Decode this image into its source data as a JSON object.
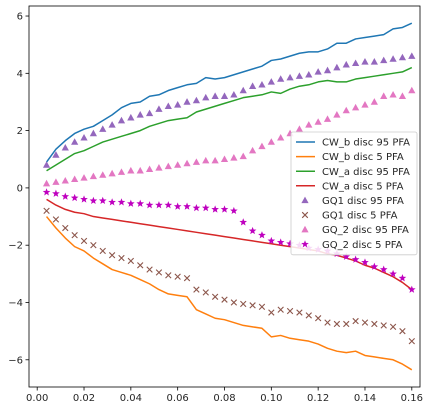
{
  "chart_data": {
    "type": "line",
    "title": "",
    "xlabel": "",
    "ylabel": "",
    "xlim": [
      -0.0035,
      0.1635
    ],
    "ylim": [
      -6.95,
      6.35
    ],
    "xticks": [
      0.0,
      0.02,
      0.04,
      0.06,
      0.08,
      0.1,
      0.12,
      0.14,
      0.16
    ],
    "xtick_labels": [
      "0.00",
      "0.02",
      "0.04",
      "0.06",
      "0.08",
      "0.10",
      "0.12",
      "0.14",
      "0.16"
    ],
    "yticks": [
      -6,
      -4,
      -2,
      0,
      2,
      4,
      6
    ],
    "ytick_labels": [
      "−6",
      "−4",
      "−2",
      "0",
      "2",
      "4",
      "6"
    ],
    "grid": false,
    "legend_position": "center-right",
    "x": [
      0.004,
      0.008,
      0.012,
      0.016,
      0.02,
      0.024,
      0.028,
      0.032,
      0.036,
      0.04,
      0.044,
      0.048,
      0.052,
      0.056,
      0.06,
      0.064,
      0.068,
      0.072,
      0.076,
      0.08,
      0.084,
      0.088,
      0.092,
      0.096,
      0.1,
      0.104,
      0.108,
      0.112,
      0.116,
      0.12,
      0.124,
      0.128,
      0.132,
      0.136,
      0.14,
      0.144,
      0.148,
      0.152,
      0.156,
      0.16
    ],
    "series": [
      {
        "name": "CW_b disc 95 PFA",
        "kind": "line",
        "color": "#1f77b4",
        "values": [
          0.9,
          1.35,
          1.65,
          1.9,
          2.05,
          2.15,
          2.35,
          2.55,
          2.8,
          2.95,
          3.0,
          3.2,
          3.25,
          3.4,
          3.5,
          3.6,
          3.65,
          3.85,
          3.8,
          3.85,
          3.95,
          4.05,
          4.15,
          4.25,
          4.45,
          4.5,
          4.6,
          4.7,
          4.75,
          4.75,
          4.85,
          5.05,
          5.05,
          5.2,
          5.25,
          5.3,
          5.35,
          5.55,
          5.6,
          5.75
        ]
      },
      {
        "name": "CW_b disc 5 PFA",
        "kind": "line",
        "color": "#ff7f0e",
        "values": [
          -1.0,
          -1.4,
          -1.75,
          -2.05,
          -2.2,
          -2.45,
          -2.65,
          -2.85,
          -2.95,
          -3.05,
          -3.2,
          -3.35,
          -3.55,
          -3.7,
          -3.75,
          -3.8,
          -4.25,
          -4.4,
          -4.55,
          -4.6,
          -4.7,
          -4.8,
          -4.85,
          -4.9,
          -5.2,
          -5.15,
          -5.25,
          -5.3,
          -5.35,
          -5.45,
          -5.6,
          -5.7,
          -5.75,
          -5.7,
          -5.85,
          -5.9,
          -5.95,
          -6.0,
          -6.15,
          -6.35
        ]
      },
      {
        "name": "CW_a disc 95 PFA",
        "kind": "line",
        "color": "#2ca02c",
        "values": [
          0.6,
          0.8,
          1.0,
          1.2,
          1.3,
          1.45,
          1.6,
          1.7,
          1.8,
          1.9,
          2.0,
          2.15,
          2.25,
          2.35,
          2.4,
          2.45,
          2.65,
          2.75,
          2.85,
          2.95,
          3.05,
          3.15,
          3.2,
          3.25,
          3.35,
          3.3,
          3.45,
          3.55,
          3.6,
          3.7,
          3.75,
          3.7,
          3.7,
          3.8,
          3.85,
          3.9,
          3.95,
          4.0,
          4.05,
          4.2
        ]
      },
      {
        "name": "CW_a disc 5 PFA",
        "kind": "line",
        "color": "#d62728",
        "values": [
          -0.4,
          -0.6,
          -0.75,
          -0.85,
          -0.9,
          -1.0,
          -1.05,
          -1.1,
          -1.15,
          -1.2,
          -1.25,
          -1.3,
          -1.35,
          -1.4,
          -1.45,
          -1.5,
          -1.55,
          -1.6,
          -1.65,
          -1.7,
          -1.75,
          -1.8,
          -1.85,
          -1.9,
          -1.95,
          -2.0,
          -2.05,
          -2.1,
          -2.15,
          -2.2,
          -2.3,
          -2.35,
          -2.45,
          -2.55,
          -2.7,
          -2.8,
          -2.95,
          -3.1,
          -3.3,
          -3.55
        ]
      },
      {
        "name": "GQ1 disc 95 PFA",
        "kind": "scatter",
        "marker": "triangle",
        "color": "#9467bd",
        "values": [
          0.8,
          1.15,
          1.4,
          1.6,
          1.75,
          1.9,
          2.05,
          2.2,
          2.35,
          2.45,
          2.55,
          2.6,
          2.75,
          2.85,
          2.9,
          3.0,
          3.05,
          3.15,
          3.2,
          3.2,
          3.25,
          3.4,
          3.55,
          3.6,
          3.7,
          3.8,
          3.85,
          3.9,
          3.95,
          4.05,
          4.1,
          4.2,
          4.3,
          4.35,
          4.4,
          4.4,
          4.45,
          4.5,
          4.55,
          4.6
        ]
      },
      {
        "name": "GQ1 disc 5 PFA",
        "kind": "scatter",
        "marker": "x",
        "color": "#8c564b",
        "values": [
          -0.8,
          -1.1,
          -1.4,
          -1.65,
          -1.85,
          -2.0,
          -2.2,
          -2.35,
          -2.45,
          -2.55,
          -2.7,
          -2.85,
          -2.95,
          -3.05,
          -3.1,
          -3.15,
          -3.55,
          -3.65,
          -3.8,
          -3.9,
          -4.0,
          -4.05,
          -4.1,
          -4.15,
          -4.35,
          -4.25,
          -4.3,
          -4.35,
          -4.45,
          -4.55,
          -4.7,
          -4.75,
          -4.75,
          -4.65,
          -4.7,
          -4.75,
          -4.8,
          -4.85,
          -5.0,
          -5.35
        ]
      },
      {
        "name": "GQ_2 disc 95 PFA",
        "kind": "scatter",
        "marker": "triangle",
        "color": "#e377c2",
        "values": [
          0.15,
          0.2,
          0.25,
          0.3,
          0.35,
          0.4,
          0.45,
          0.5,
          0.55,
          0.6,
          0.6,
          0.65,
          0.7,
          0.75,
          0.8,
          0.85,
          0.9,
          0.95,
          0.95,
          1.0,
          1.05,
          1.1,
          1.3,
          1.45,
          1.6,
          1.75,
          1.9,
          2.05,
          2.2,
          2.3,
          2.4,
          2.55,
          2.7,
          2.8,
          2.9,
          3.0,
          3.2,
          3.25,
          3.2,
          3.4
        ]
      },
      {
        "name": "GQ_2 disc 5 PFA",
        "kind": "scatter",
        "marker": "star",
        "color": "#bf00bf",
        "values": [
          -0.15,
          -0.2,
          -0.3,
          -0.35,
          -0.4,
          -0.45,
          -0.45,
          -0.5,
          -0.5,
          -0.55,
          -0.55,
          -0.6,
          -0.6,
          -0.6,
          -0.65,
          -0.65,
          -0.7,
          -0.7,
          -0.75,
          -0.75,
          -0.8,
          -1.2,
          -1.5,
          -1.65,
          -1.85,
          -1.9,
          -1.95,
          -2.0,
          -2.1,
          -2.15,
          -2.2,
          -2.3,
          -2.4,
          -2.5,
          -2.6,
          -2.75,
          -2.85,
          -3.0,
          -3.15,
          -3.55
        ]
      }
    ]
  }
}
